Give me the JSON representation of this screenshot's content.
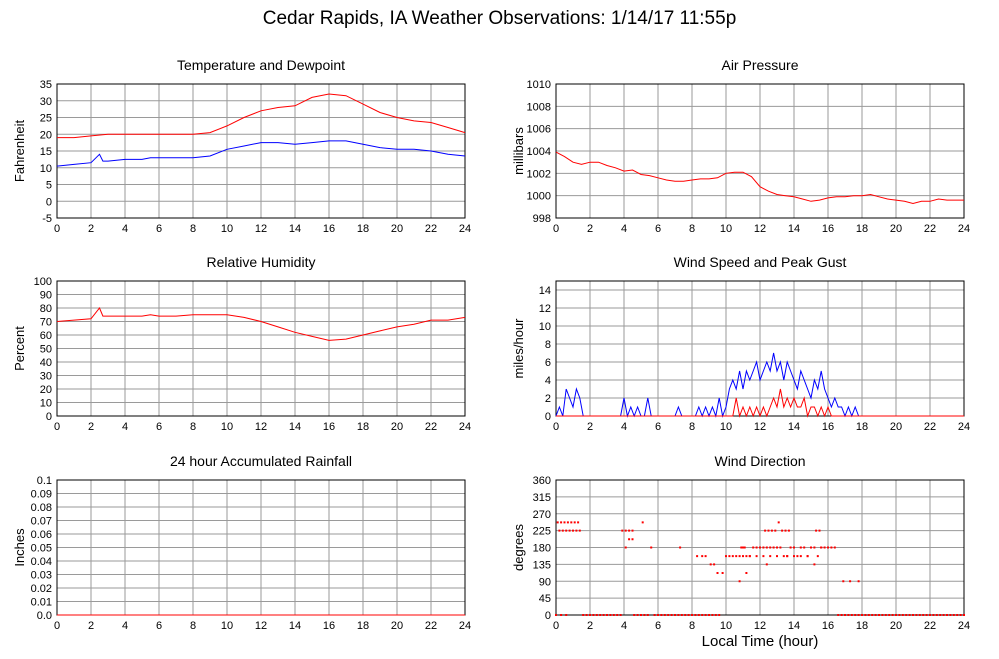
{
  "page": {
    "title": "Cedar Rapids, IA Weather Observations: 1/14/17 11:55p",
    "xaxis_title": "Local Time (hour)"
  },
  "colors": {
    "grid": "#9a9a9a",
    "red": "#ff0000",
    "blue": "#0000ff",
    "frame": "#000000"
  },
  "chart_data": [
    {
      "id": "temperature",
      "type": "line",
      "title": "Temperature and Dewpoint",
      "ylabel": "Fahrenheit",
      "xlim": [
        0,
        24
      ],
      "ylim": [
        -5,
        35
      ],
      "yticks": [
        -5,
        0,
        5,
        10,
        15,
        20,
        25,
        30,
        35
      ],
      "xticks": [
        0,
        2,
        4,
        6,
        8,
        10,
        12,
        14,
        16,
        18,
        20,
        22,
        24
      ],
      "grid": true,
      "series": [
        {
          "color": "#ff0000",
          "x": [
            0,
            1,
            2,
            3,
            4,
            5,
            6,
            7,
            8,
            9,
            10,
            11,
            12,
            13,
            14,
            15,
            16,
            17,
            18,
            19,
            20,
            21,
            22,
            23,
            24
          ],
          "y": [
            19,
            19,
            19.5,
            20,
            20,
            20,
            20,
            20,
            20,
            20.5,
            22.5,
            25,
            27,
            28,
            28.5,
            31,
            32,
            31.5,
            29,
            26.5,
            25,
            24,
            23.5,
            22,
            20.5
          ]
        },
        {
          "color": "#0000ff",
          "x": [
            0,
            1,
            2,
            2.5,
            2.7,
            3,
            4,
            5,
            5.5,
            6,
            7,
            8,
            9,
            10,
            11,
            12,
            13,
            14,
            15,
            16,
            17,
            18,
            19,
            20,
            21,
            22,
            23,
            24
          ],
          "y": [
            10.5,
            11,
            11.5,
            14,
            12,
            12,
            12.5,
            12.5,
            13,
            13,
            13,
            13,
            13.5,
            15.5,
            16.5,
            17.5,
            17.5,
            17,
            17.5,
            18,
            18,
            17,
            16,
            15.5,
            15.5,
            15,
            14,
            13.5
          ]
        }
      ]
    },
    {
      "id": "pressure",
      "type": "line",
      "title": "Air Pressure",
      "ylabel": "millibars",
      "xlim": [
        0,
        24
      ],
      "ylim": [
        998,
        1010
      ],
      "yticks": [
        998,
        1000,
        1002,
        1004,
        1006,
        1008,
        1010
      ],
      "xticks": [
        0,
        2,
        4,
        6,
        8,
        10,
        12,
        14,
        16,
        18,
        20,
        22,
        24
      ],
      "grid": true,
      "series": [
        {
          "color": "#ff0000",
          "x": [
            0,
            0.5,
            1,
            1.5,
            2,
            2.5,
            3,
            3.5,
            4,
            4.5,
            5,
            5.5,
            6,
            6.5,
            7,
            7.5,
            8,
            8.5,
            9,
            9.5,
            10,
            10.5,
            11,
            11.5,
            12,
            12.5,
            13,
            13.5,
            14,
            14.5,
            15,
            15.5,
            16,
            16.5,
            17,
            17.5,
            18,
            18.5,
            19,
            19.5,
            20,
            20.5,
            21,
            21.5,
            22,
            22.5,
            23,
            23.5,
            24
          ],
          "y": [
            1003.9,
            1003.5,
            1003,
            1002.8,
            1003,
            1003,
            1002.7,
            1002.5,
            1002.2,
            1002.3,
            1001.9,
            1001.8,
            1001.6,
            1001.4,
            1001.3,
            1001.3,
            1001.4,
            1001.5,
            1001.5,
            1001.6,
            1002,
            1002.1,
            1002.1,
            1001.7,
            1000.8,
            1000.4,
            1000.1,
            1000.0,
            999.9,
            999.7,
            999.5,
            999.6,
            999.8,
            999.9,
            999.9,
            1000.0,
            1000.0,
            1000.1,
            999.9,
            999.7,
            999.6,
            999.5,
            999.3,
            999.5,
            999.5,
            999.7,
            999.6,
            999.6,
            999.6
          ]
        }
      ]
    },
    {
      "id": "humidity",
      "type": "line",
      "title": "Relative Humidity",
      "ylabel": "Percent",
      "xlim": [
        0,
        24
      ],
      "ylim": [
        0,
        100
      ],
      "yticks": [
        0,
        10,
        20,
        30,
        40,
        50,
        60,
        70,
        80,
        90,
        100
      ],
      "xticks": [
        0,
        2,
        4,
        6,
        8,
        10,
        12,
        14,
        16,
        18,
        20,
        22,
        24
      ],
      "grid": true,
      "series": [
        {
          "color": "#ff0000",
          "x": [
            0,
            1,
            2,
            2.5,
            2.7,
            3,
            4,
            5,
            5.5,
            6,
            7,
            8,
            9,
            10,
            11,
            12,
            13,
            14,
            15,
            16,
            17,
            18,
            19,
            20,
            21,
            22,
            23,
            24
          ],
          "y": [
            70,
            71,
            72,
            80,
            74,
            74,
            74,
            74,
            75,
            74,
            74,
            75,
            75,
            75,
            73,
            70,
            66,
            62,
            59,
            56,
            57,
            60,
            63,
            66,
            68,
            71,
            71,
            73
          ]
        }
      ]
    },
    {
      "id": "wind",
      "type": "line",
      "title": "Wind Speed and Peak Gust",
      "ylabel": "miles/hour",
      "xlim": [
        0,
        24
      ],
      "ylim": [
        0,
        15
      ],
      "yticks": [
        0,
        2,
        4,
        6,
        8,
        10,
        12,
        14
      ],
      "xticks": [
        0,
        2,
        4,
        6,
        8,
        10,
        12,
        14,
        16,
        18,
        20,
        22,
        24
      ],
      "grid": true,
      "series": [
        {
          "color": "#0000ff",
          "x": [
            0,
            0.2,
            0.4,
            0.6,
            0.8,
            1.0,
            1.2,
            1.4,
            1.6,
            1.8,
            3.8,
            4.0,
            4.2,
            4.4,
            4.6,
            4.8,
            5.0,
            5.2,
            5.4,
            5.6,
            7.0,
            7.2,
            7.4,
            8.2,
            8.4,
            8.6,
            8.8,
            9.0,
            9.2,
            9.4,
            9.6,
            9.8,
            10.0,
            10.2,
            10.4,
            10.6,
            10.8,
            11.0,
            11.2,
            11.4,
            11.6,
            11.8,
            12.0,
            12.2,
            12.4,
            12.6,
            12.8,
            13.0,
            13.2,
            13.4,
            13.6,
            13.8,
            14.0,
            14.2,
            14.4,
            14.6,
            14.8,
            15.0,
            15.2,
            15.4,
            15.6,
            15.8,
            16.0,
            16.2,
            16.4,
            16.6,
            16.8,
            17.0,
            17.2,
            17.4,
            17.6,
            17.8,
            18.0,
            24
          ],
          "y": [
            0,
            1,
            0,
            3,
            2,
            1,
            3,
            2,
            0,
            0,
            0,
            2,
            0,
            1,
            0,
            1,
            0,
            0,
            2,
            0,
            0,
            1,
            0,
            0,
            1,
            0,
            1,
            0,
            1,
            0,
            2,
            0,
            1,
            3,
            4,
            3,
            5,
            3,
            5,
            4,
            5,
            6,
            4,
            5,
            6,
            5,
            7,
            5,
            6,
            4,
            6,
            5,
            4,
            3,
            5,
            4,
            3,
            2,
            4,
            3,
            5,
            3,
            2,
            1,
            2,
            1,
            1,
            0,
            1,
            0,
            1,
            0,
            0,
            0
          ]
        },
        {
          "color": "#ff0000",
          "x": [
            0,
            10.4,
            10.6,
            10.8,
            11.0,
            11.2,
            11.4,
            11.6,
            11.8,
            12.0,
            12.2,
            12.4,
            12.6,
            12.8,
            13.0,
            13.2,
            13.4,
            13.6,
            13.8,
            14.0,
            14.2,
            14.4,
            14.6,
            14.8,
            15.0,
            15.2,
            15.4,
            15.6,
            15.8,
            16.0,
            16.2,
            16.4,
            24
          ],
          "y": [
            0,
            0,
            2,
            0,
            1,
            0,
            1,
            0,
            1,
            0,
            1,
            0,
            1,
            2,
            1,
            3,
            1,
            2,
            1,
            2,
            1,
            1,
            2,
            0,
            1,
            1,
            0,
            1,
            0,
            1,
            0,
            0,
            0
          ]
        }
      ]
    },
    {
      "id": "rainfall",
      "type": "line",
      "title": "24 hour Accumulated Rainfall",
      "ylabel": "Inches",
      "xlim": [
        0,
        24
      ],
      "ylim": [
        0,
        0.1
      ],
      "yticks": [
        "0.0",
        "0.01",
        "0.02",
        "0.03",
        "0.04",
        "0.05",
        "0.06",
        "0.07",
        "0.08",
        "0.09",
        "0.1"
      ],
      "xticks": [
        0,
        2,
        4,
        6,
        8,
        10,
        12,
        14,
        16,
        18,
        20,
        22,
        24
      ],
      "grid": true,
      "series": [
        {
          "color": "#ff0000",
          "x": [
            0,
            24
          ],
          "y": [
            0,
            0
          ]
        }
      ]
    },
    {
      "id": "direction",
      "type": "scatter",
      "title": "Wind Direction",
      "ylabel": "degrees",
      "xlim": [
        0,
        24
      ],
      "ylim": [
        0,
        360
      ],
      "yticks": [
        0,
        45,
        90,
        135,
        180,
        225,
        270,
        315,
        360
      ],
      "xticks": [
        0,
        2,
        4,
        6,
        8,
        10,
        12,
        14,
        16,
        18,
        20,
        22,
        24
      ],
      "grid": true,
      "series": [
        {
          "color": "#ff0000",
          "x": [
            0.1,
            0.3,
            0.5,
            0.7,
            0.9,
            1.1,
            1.3,
            0.2,
            0.4,
            0.6,
            0.8,
            1.0,
            1.2,
            1.4,
            0,
            0.3,
            0.6,
            3.9,
            4.1,
            4.3,
            4.5,
            4.1,
            4.3,
            4.5,
            5.1,
            5.6,
            7.3,
            8.3,
            8.6,
            8.8,
            9.1,
            9.3,
            9.5,
            9.8,
            10.0,
            10.2,
            10.4,
            10.6,
            10.8,
            11.0,
            11.2,
            11.4,
            11.6,
            11.8,
            12.0,
            12.2,
            12.4,
            12.6,
            12.8,
            13.0,
            13.2,
            13.4,
            13.6,
            13.8,
            14.0,
            14.2,
            14.4,
            14.6,
            14.8,
            15.0,
            15.2,
            15.4,
            15.6,
            15.8,
            16.0,
            16.2,
            16.4,
            10.9,
            11.1,
            12.3,
            12.5,
            12.7,
            12.9,
            13.1,
            13.3,
            13.5,
            13.7,
            15.3,
            15.5,
            11.0,
            11.4,
            11.8,
            12.2,
            12.6,
            13.0,
            13.6,
            14.0,
            14.4,
            14.8,
            15.2,
            15.6,
            16.0,
            16.9,
            17.3,
            17.8,
            10.8,
            11.2,
            12.4
          ],
          "y": [
            247,
            247,
            247,
            247,
            247,
            247,
            247,
            225,
            225,
            225,
            225,
            225,
            225,
            225,
            0,
            0,
            0,
            225,
            225,
            225,
            225,
            180,
            202,
            202,
            247,
            180,
            180,
            157,
            157,
            157,
            135,
            135,
            112,
            112,
            157,
            157,
            157,
            157,
            157,
            180,
            157,
            157,
            180,
            180,
            180,
            180,
            180,
            180,
            180,
            180,
            180,
            157,
            157,
            180,
            180,
            157,
            180,
            180,
            157,
            180,
            180,
            157,
            180,
            180,
            180,
            180,
            180,
            180,
            180,
            225,
            225,
            225,
            225,
            247,
            225,
            225,
            225,
            225,
            225,
            157,
            157,
            157,
            157,
            157,
            157,
            157,
            157,
            157,
            157,
            135,
            180,
            180,
            90,
            90,
            90,
            90,
            112,
            135
          ]
        },
        {
          "color": "#ff0000",
          "x": [
            1.6,
            1.8,
            2.0,
            2.2,
            2.4,
            2.6,
            2.8,
            3.0,
            3.2,
            3.4,
            3.6,
            3.8,
            4.6,
            4.8,
            5.0,
            5.2,
            5.4,
            5.8,
            6.0,
            6.2,
            6.4,
            6.6,
            6.8,
            7.0,
            7.2,
            7.4,
            7.6,
            7.8,
            8.0,
            8.2,
            8.4,
            8.6,
            8.8,
            9.0,
            9.2,
            9.4,
            9.6,
            16.6,
            16.8,
            17.0,
            17.2,
            17.4,
            17.6,
            17.8,
            18.0,
            18.2,
            18.4,
            18.6,
            18.8,
            19.0,
            19.2,
            19.4,
            19.6,
            19.8,
            20.0,
            20.2,
            20.4,
            20.6,
            20.8,
            21.0,
            21.2,
            21.4,
            21.6,
            21.8,
            22.0,
            22.2,
            22.4,
            22.6,
            22.8,
            23.0,
            23.2,
            23.4,
            23.6,
            23.8,
            24.0
          ],
          "y": [
            0,
            0,
            0,
            0,
            0,
            0,
            0,
            0,
            0,
            0,
            0,
            0,
            0,
            0,
            0,
            0,
            0,
            0,
            0,
            0,
            0,
            0,
            0,
            0,
            0,
            0,
            0,
            0,
            0,
            0,
            0,
            0,
            0,
            0,
            0,
            0,
            0,
            0,
            0,
            0,
            0,
            0,
            0,
            0,
            0,
            0,
            0,
            0,
            0,
            0,
            0,
            0,
            0,
            0,
            0,
            0,
            0,
            0,
            0,
            0,
            0,
            0,
            0,
            0,
            0,
            0,
            0,
            0,
            0,
            0,
            0,
            0,
            0,
            0,
            0
          ]
        }
      ]
    }
  ]
}
